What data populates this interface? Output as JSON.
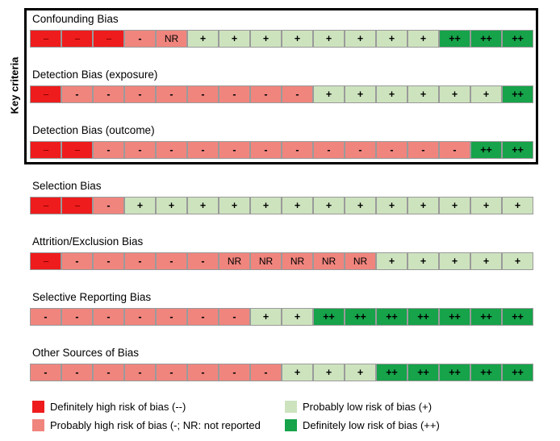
{
  "key_criteria_label": "Key criteria",
  "colors": {
    "definitely_high": "#ee1c1c",
    "probably_high": "#f0857e",
    "probably_low": "#cde3be",
    "definitely_low": "#16a34a"
  },
  "chart_data": {
    "type": "table",
    "rows": [
      {
        "name": "Confounding Bias",
        "cells": [
          "--",
          "--",
          "--",
          "-",
          "NR",
          "+",
          "+",
          "+",
          "+",
          "+",
          "+",
          "+",
          "+",
          "++",
          "++",
          "++"
        ]
      },
      {
        "name": "Detection Bias (exposure)",
        "cells": [
          "--",
          "-",
          "-",
          "-",
          "-",
          "-",
          "-",
          "-",
          "-",
          "+",
          "+",
          "+",
          "+",
          "+",
          "+",
          "++"
        ]
      },
      {
        "name": "Detection Bias (outcome)",
        "cells": [
          "--",
          "--",
          "-",
          "-",
          "-",
          "-",
          "-",
          "-",
          "-",
          "-",
          "-",
          "-",
          "-",
          "-",
          "++",
          "++"
        ]
      },
      {
        "name": "Selection Bias",
        "cells": [
          "--",
          "--",
          "-",
          "+",
          "+",
          "+",
          "+",
          "+",
          "+",
          "+",
          "+",
          "+",
          "+",
          "+",
          "+",
          "+"
        ]
      },
      {
        "name": "Attrition/Exclusion Bias",
        "cells": [
          "--",
          "-",
          "-",
          "-",
          "-",
          "-",
          "NR",
          "NR",
          "NR",
          "NR",
          "NR",
          "+",
          "+",
          "+",
          "+",
          "+"
        ]
      },
      {
        "name": "Selective Reporting Bias",
        "cells": [
          "-",
          "-",
          "-",
          "-",
          "-",
          "-",
          "-",
          "+",
          "+",
          "++",
          "++",
          "++",
          "++",
          "++",
          "++",
          "++"
        ]
      },
      {
        "name": "Other Sources of Bias",
        "cells": [
          "-",
          "-",
          "-",
          "-",
          "-",
          "-",
          "-",
          "-",
          "+",
          "+",
          "+",
          "++",
          "++",
          "++",
          "++",
          "++"
        ]
      }
    ],
    "legend": [
      {
        "label": "Definitely high risk of bias (--)",
        "category": "definitely_high"
      },
      {
        "label": "Probably high risk of bias (-; NR: not reported",
        "category": "probably_high"
      },
      {
        "label": "Probably low risk of bias (+)",
        "category": "probably_low"
      },
      {
        "label": "Definitely low risk of bias (++)",
        "category": "definitely_low"
      }
    ]
  }
}
